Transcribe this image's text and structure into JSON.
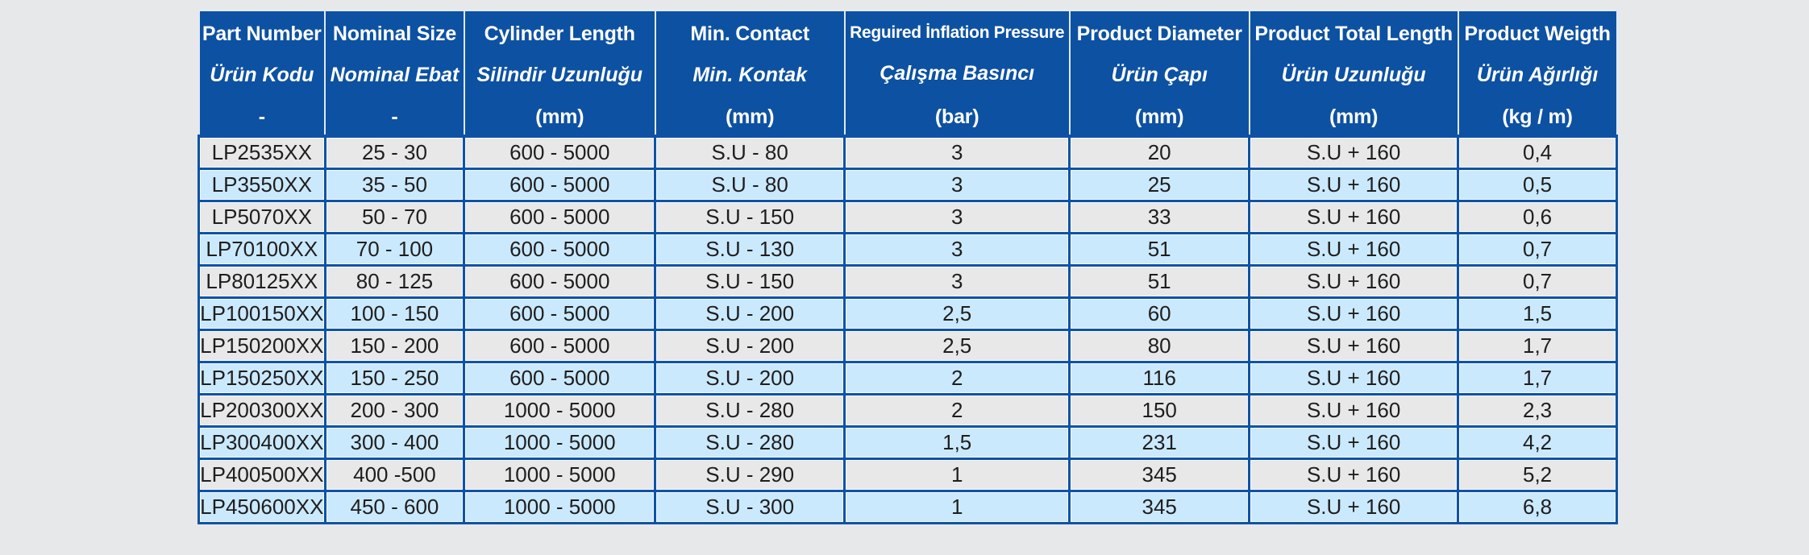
{
  "chart_data": {
    "type": "table",
    "columns": [
      {
        "title_en": "Part Number",
        "title_tr": "Ürün Kodu",
        "unit": "-"
      },
      {
        "title_en": "Nominal Size",
        "title_tr": "Nominal Ebat",
        "unit": "-"
      },
      {
        "title_en": "Cylinder Length",
        "title_tr": "Silindir Uzunluğu",
        "unit": "(mm)"
      },
      {
        "title_en": "Min. Contact",
        "title_tr": "Min. Kontak",
        "unit": "(mm)"
      },
      {
        "title_en": "Reguired İnflation Pressure",
        "title_tr": "Çalışma Basıncı",
        "unit": "(bar)"
      },
      {
        "title_en": "Product Diameter",
        "title_tr": "Ürün Çapı",
        "unit": "(mm)"
      },
      {
        "title_en": "Product Total Length",
        "title_tr": "Ürün Uzunluğu",
        "unit": "(mm)"
      },
      {
        "title_en": "Product Weigth",
        "title_tr": "Ürün Ağırlığı",
        "unit": "(kg / m)"
      }
    ],
    "rows": [
      [
        "LP2535XX",
        "25 - 30",
        "600 - 5000",
        "S.U - 80",
        "3",
        "20",
        "S.U + 160",
        "0,4"
      ],
      [
        "LP3550XX",
        "35 - 50",
        "600 - 5000",
        "S.U - 80",
        "3",
        "25",
        "S.U + 160",
        "0,5"
      ],
      [
        "LP5070XX",
        "50 - 70",
        "600 - 5000",
        "S.U - 150",
        "3",
        "33",
        "S.U + 160",
        "0,6"
      ],
      [
        "LP70100XX",
        "70 - 100",
        "600 - 5000",
        "S.U - 130",
        "3",
        "51",
        "S.U + 160",
        "0,7"
      ],
      [
        "LP80125XX",
        "80 - 125",
        "600 - 5000",
        "S.U - 150",
        "3",
        "51",
        "S.U + 160",
        "0,7"
      ],
      [
        "LP100150XX",
        "100 - 150",
        "600 - 5000",
        "S.U - 200",
        "2,5",
        "60",
        "S.U + 160",
        "1,5"
      ],
      [
        "LP150200XX",
        "150 - 200",
        "600 - 5000",
        "S.U - 200",
        "2,5",
        "80",
        "S.U + 160",
        "1,7"
      ],
      [
        "LP150250XX",
        "150 - 250",
        "600 - 5000",
        "S.U - 200",
        "2",
        "116",
        "S.U + 160",
        "1,7"
      ],
      [
        "LP200300XX",
        "200 - 300",
        "1000 - 5000",
        "S.U - 280",
        "2",
        "150",
        "S.U + 160",
        "2,3"
      ],
      [
        "LP300400XX",
        "300 - 400",
        "1000 - 5000",
        "S.U - 280",
        "1,5",
        "231",
        "S.U + 160",
        "4,2"
      ],
      [
        "LP400500XX",
        "400 -500",
        "1000 - 5000",
        "S.U - 290",
        "1",
        "345",
        "S.U + 160",
        "5,2"
      ],
      [
        "LP450600XX",
        "450 - 600",
        "1000 - 5000",
        "S.U - 300",
        "1",
        "345",
        "S.U + 160",
        "6,8"
      ]
    ],
    "layout": {
      "grid": "on",
      "header_rows": 1,
      "row_striping": [
        "gray",
        "light-blue"
      ]
    },
    "colors": {
      "header_bg": "#0d51a2",
      "header_text": "#ffffff",
      "grid_blue": "#0e52a6",
      "row_gray": "#e8e8e8",
      "row_blue": "#cbe9fc",
      "page_bg": "#e7e8ea",
      "cell_text": "#1e1e1e"
    }
  }
}
